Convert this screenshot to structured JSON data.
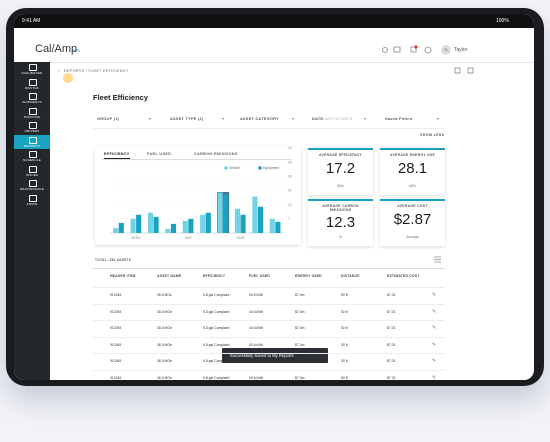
{
  "status_bar": {
    "time": "9:41 AM",
    "battery": "100%"
  },
  "header": {
    "logo": "Cal/Amp",
    "logo_suffix": "iOn",
    "user_initials": "TL",
    "user_name": "Taylor"
  },
  "sidebar": {
    "items": [
      "DASHBOARD",
      "ROUTES",
      "SHIPMENTS",
      "TRACKING",
      "DRIVERS",
      "REPORTS",
      "SCHEDULE",
      "ISSUES",
      "MAINTENANCE",
      "ADMIN"
    ],
    "active": 5
  },
  "breadcrumb": "REPORTS / FLEET EFFICIENCY",
  "page_title": "Fleet Efficiency",
  "filters": [
    {
      "label": "GROUP (1)"
    },
    {
      "label": "ASSET TYPE (2)"
    },
    {
      "label": "ASSET CATEGORY"
    },
    {
      "label": "DATE",
      "value": "LAST 30 DAYS"
    },
    {
      "label": "Saved Filters"
    }
  ],
  "show_less": "SHOW LESS",
  "tabs": [
    "EFFICIENCY",
    "FUEL USED",
    "CARBON EMISSIONS"
  ],
  "active_tab": 0,
  "chart_data": {
    "type": "bar",
    "categories": [
      null,
      "APRIL",
      null,
      null,
      "MAY",
      null,
      null,
      "JUNE",
      null,
      null
    ],
    "series": [
      {
        "name": "Vehicle",
        "color": "#72d3e6",
        "values": [
          2.5,
          7,
          10,
          2,
          6,
          9,
          20,
          12,
          18,
          7
        ]
      },
      {
        "name": "Equipment",
        "color": "#1aa3c0",
        "values": [
          5,
          9,
          8,
          4.5,
          7,
          10,
          19,
          9,
          13,
          5.5
        ]
      }
    ],
    "ylim": [
      0,
      42
    ],
    "yticks": [
      7,
      14,
      21,
      28,
      35,
      42
    ],
    "grid": true,
    "selected_category": 6,
    "legend": "top-right"
  },
  "kpis": [
    {
      "title": "AVERAGE EFFICIENCY",
      "value": "17.2",
      "unit": "MGe"
    },
    {
      "title": "AVERAGE ENERGY USE",
      "value": "28.1",
      "unit": "kWh"
    },
    {
      "title": "AVERAGE CARBON EMISSIONS",
      "value": "12.3",
      "unit": "lb"
    },
    {
      "title": "AVERAGE COST",
      "value": "$2.87",
      "unit": "Average"
    }
  ],
  "table": {
    "total": "TOTAL: 254 ASSETS",
    "columns": [
      "HEADER ITEM",
      "ASSET NAME",
      "EFFICIENCY",
      "FUEL USED",
      "ENERGY USED",
      "DISTANCE",
      "ESTIMATED COST"
    ],
    "rows": [
      [
        "912345",
        "36.5 MGe",
        "5.8 gal Complaint",
        "40.6 kWh",
        "$7.3m",
        "50 ft",
        "$7.01"
      ],
      [
        "912345",
        "36.5 MGe",
        "5.8 gal Complaint",
        "40.6 kWh",
        "$7.3m",
        "50 ft",
        "$7.01"
      ],
      [
        "912345",
        "36.5 MGe",
        "5.8 gal Complaint",
        "40.6 kWh",
        "$7.3m",
        "50 ft",
        "$7.01"
      ],
      [
        "912345",
        "36.5 MGe",
        "5.8 gal Complaint",
        "40.6 kWh",
        "$7.3m",
        "50 ft",
        "$7.01"
      ],
      [
        "912345",
        "36.5 MGe",
        "5.8 gal Complaint",
        "40.6 kWh",
        "$7.3m",
        "50 ft",
        "$7.01"
      ],
      [
        "912345",
        "36.5 MGe",
        "5.8 gal Complaint",
        "40.6 kWh",
        "$7.3m",
        "50 ft",
        "$7.01"
      ]
    ]
  },
  "toast": "Successfully Saved to My Reports"
}
